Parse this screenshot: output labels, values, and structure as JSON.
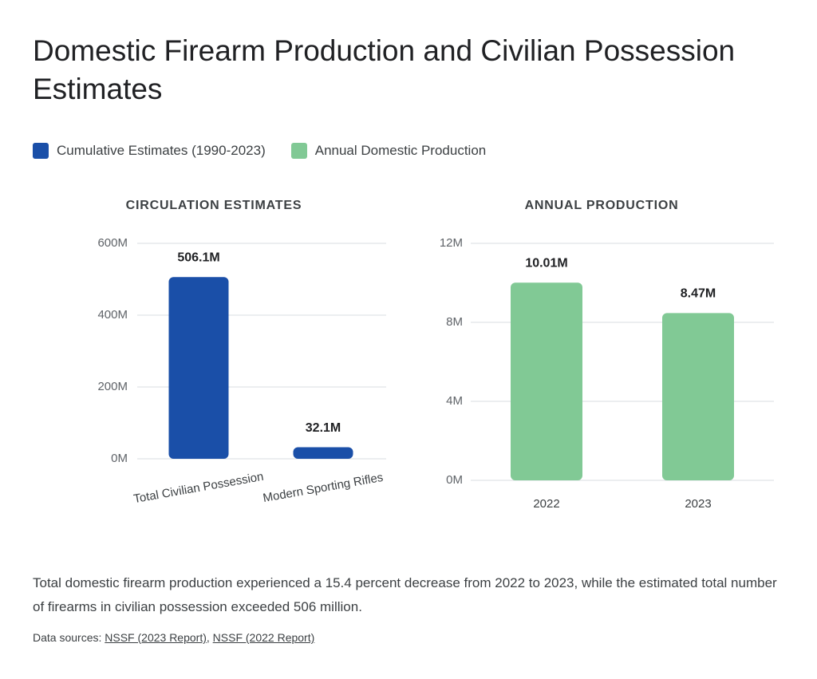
{
  "title": "Domestic Firearm Production and Civilian Possession Estimates",
  "description": "Total domestic firearm production experienced a 15.4 percent decrease from 2022 to 2023, while the estimated total number of firearms in civilian possession exceeded 506 million.",
  "sources": {
    "label": "Data sources:",
    "links": [
      "NSSF (2023 Report)",
      "NSSF (2022 Report)"
    ]
  },
  "chart_data": [
    {
      "type": "bar",
      "title": "CIRCULATION ESTIMATES",
      "categories": [
        "Total Civilian Possession",
        "Modern Sporting Rifles"
      ],
      "series": [
        {
          "name": "Cumulative Estimates (1990-2023)",
          "color": "#1a4fa8",
          "values": [
            506100000,
            32100000
          ],
          "value_labels": [
            "506.1M",
            "32.1M"
          ]
        }
      ],
      "ylim": [
        0,
        600000000
      ],
      "yticks": [
        {
          "value": 0,
          "label": "0M"
        },
        {
          "value": 200000000,
          "label": "200M"
        },
        {
          "value": 400000000,
          "label": "400M"
        },
        {
          "value": 600000000,
          "label": "600M"
        }
      ],
      "grid": true
    },
    {
      "type": "bar",
      "title": "ANNUAL PRODUCTION",
      "categories": [
        "2022",
        "2023"
      ],
      "series": [
        {
          "name": "Annual Domestic Production",
          "color": "#81c995",
          "values": [
            10010000,
            8470000
          ],
          "value_labels": [
            "10.01M",
            "8.47M"
          ]
        }
      ],
      "ylim": [
        0,
        12000000
      ],
      "yticks": [
        {
          "value": 0,
          "label": "0M"
        },
        {
          "value": 4000000,
          "label": "4M"
        },
        {
          "value": 8000000,
          "label": "8M"
        },
        {
          "value": 12000000,
          "label": "12M"
        }
      ],
      "grid": true
    }
  ]
}
